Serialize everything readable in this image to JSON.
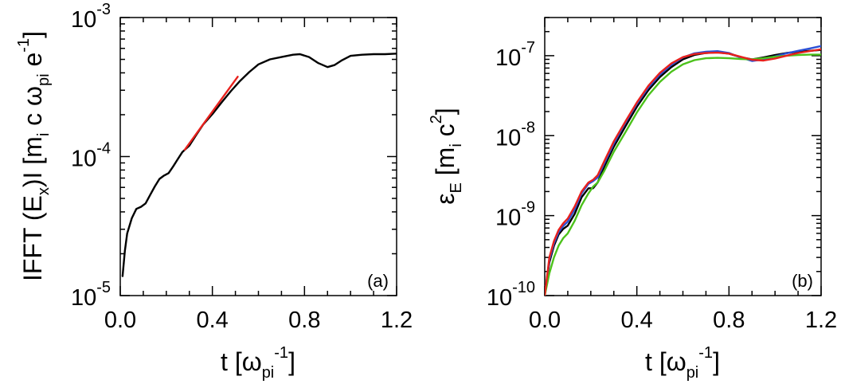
{
  "chart_data": [
    {
      "type": "line",
      "panel_label": "(a)",
      "ylabel": {
        "prefix": "IFFT (E",
        "sub1": "x",
        "mid1": ")I [m",
        "sub2": "i",
        "mid2": " c ω",
        "sub3": "pi",
        "mid3": " e",
        "sup": "-1",
        "suffix": "]"
      },
      "xlabel": {
        "prefix": "t [ω",
        "sub": "pi",
        "sup": "-1",
        "suffix": "]"
      },
      "yscale": "log",
      "xlim": [
        0.0,
        1.2
      ],
      "ylim": [
        1e-05,
        0.001
      ],
      "xticks": [
        "0.0",
        "0.4",
        "0.8",
        "1.2"
      ],
      "xtick_values": [
        0.0,
        0.4,
        0.8,
        1.2
      ],
      "ytick_decades": [
        -5,
        -4,
        -3
      ],
      "ytick_mantissa": "10",
      "series": [
        {
          "name": "IFFT(Ex)",
          "color": "#000000",
          "x": [
            0.01,
            0.02,
            0.03,
            0.05,
            0.07,
            0.09,
            0.11,
            0.13,
            0.15,
            0.17,
            0.19,
            0.21,
            0.23,
            0.25,
            0.27,
            0.3,
            0.33,
            0.36,
            0.4,
            0.44,
            0.48,
            0.52,
            0.56,
            0.6,
            0.65,
            0.7,
            0.75,
            0.78,
            0.82,
            0.86,
            0.9,
            0.93,
            0.96,
            1.0,
            1.05,
            1.1,
            1.15,
            1.2
          ],
          "values": [
            1.38e-05,
            2.1e-05,
            2.8e-05,
            3.6e-05,
            4.2e-05,
            4.35e-05,
            4.6e-05,
            5.3e-05,
            6.1e-05,
            6.9e-05,
            7.3e-05,
            7.6e-05,
            8.5e-05,
            9.6e-05,
            0.000108,
            0.00012,
            0.000143,
            0.00017,
            0.000202,
            0.000245,
            0.000295,
            0.00035,
            0.000405,
            0.00046,
            0.0005,
            0.00052,
            0.00054,
            0.000545,
            0.00052,
            0.00047,
            0.00044,
            0.000455,
            0.00049,
            0.00053,
            0.00054,
            0.000545,
            0.000545,
            0.00055
          ]
        },
        {
          "name": "fit",
          "color": "#e8211d",
          "x": [
            0.28,
            0.51
          ],
          "values": [
            0.000112,
            0.000375
          ]
        }
      ]
    },
    {
      "type": "line",
      "panel_label": "(b)",
      "ylabel": {
        "prefix": "ε",
        "sub1": "E",
        "mid1": " [m",
        "sub2": "i",
        "mid2": " c",
        "sup": "2",
        "suffix": "]"
      },
      "xlabel": {
        "prefix": "t [ω",
        "sub": "pi",
        "sup": "-1",
        "suffix": "]"
      },
      "yscale": "log",
      "xlim": [
        0.0,
        1.2
      ],
      "ylim": [
        1e-10,
        3e-07
      ],
      "xticks": [
        "0.0",
        "0.4",
        "0.8",
        "1.2"
      ],
      "xtick_values": [
        0.0,
        0.4,
        0.8,
        1.2
      ],
      "ytick_decades": [
        -10,
        -9,
        -8,
        -7
      ],
      "ytick_mantissa": "10",
      "series": [
        {
          "name": "black",
          "color": "#000000",
          "x": [
            0.0,
            0.02,
            0.04,
            0.06,
            0.08,
            0.1,
            0.13,
            0.16,
            0.19,
            0.21,
            0.23,
            0.26,
            0.3,
            0.35,
            0.4,
            0.45,
            0.5,
            0.55,
            0.6,
            0.65,
            0.7,
            0.75,
            0.8,
            0.85,
            0.9,
            0.95,
            1.0,
            1.05,
            1.1,
            1.15,
            1.2
          ],
          "values": [
            1e-10,
            2.6e-10,
            4.2e-10,
            5.8e-10,
            6.8e-10,
            7.5e-10,
            1.05e-09,
            1.7e-09,
            2.2e-09,
            2.2e-09,
            2.6e-09,
            4.2e-09,
            7.3e-09,
            1.3e-08,
            2.3e-08,
            3.7e-08,
            5.4e-08,
            7.2e-08,
            9e-08,
            1.02e-07,
            1.08e-07,
            1.1e-07,
            1.06e-07,
            9.6e-08,
            9e-08,
            9.5e-08,
            1.02e-07,
            1.08e-07,
            1.12e-07,
            1.15e-07,
            1.18e-07
          ]
        },
        {
          "name": "blue",
          "color": "#2b4fd6",
          "x": [
            0.0,
            0.02,
            0.04,
            0.06,
            0.08,
            0.1,
            0.13,
            0.16,
            0.19,
            0.21,
            0.23,
            0.26,
            0.3,
            0.35,
            0.4,
            0.45,
            0.5,
            0.55,
            0.6,
            0.65,
            0.7,
            0.75,
            0.8,
            0.85,
            0.9,
            0.95,
            1.0,
            1.05,
            1.1,
            1.15,
            1.2
          ],
          "values": [
            1e-10,
            2.8e-10,
            4.5e-10,
            6.2e-10,
            7.4e-10,
            8.4e-10,
            1.2e-09,
            1.9e-09,
            2.5e-09,
            2.7e-09,
            3e-09,
            4.6e-09,
            8e-09,
            1.45e-08,
            2.5e-08,
            4e-08,
            5.8e-08,
            7.7e-08,
            9.5e-08,
            1.07e-07,
            1.12e-07,
            1.14e-07,
            1.08e-07,
            9.5e-08,
            8.6e-08,
            9e-08,
            9.8e-08,
            1.07e-07,
            1.15e-07,
            1.23e-07,
            1.32e-07
          ]
        },
        {
          "name": "green",
          "color": "#4cc21b",
          "x": [
            0.0,
            0.02,
            0.04,
            0.06,
            0.08,
            0.1,
            0.13,
            0.16,
            0.19,
            0.21,
            0.23,
            0.26,
            0.3,
            0.35,
            0.4,
            0.45,
            0.5,
            0.55,
            0.6,
            0.65,
            0.7,
            0.75,
            0.8,
            0.85,
            0.9,
            0.95,
            1.0,
            1.05,
            1.1,
            1.15,
            1.2
          ],
          "values": [
            1e-10,
            1.9e-10,
            3e-10,
            4.2e-10,
            5.2e-10,
            6e-10,
            8.6e-10,
            1.35e-09,
            1.9e-09,
            2.3e-09,
            2.6e-09,
            3.7e-09,
            6.3e-09,
            1.1e-08,
            1.95e-08,
            3.2e-08,
            4.7e-08,
            6.3e-08,
            7.8e-08,
            8.8e-08,
            9.3e-08,
            9.4e-08,
            9.3e-08,
            9.1e-08,
            9e-08,
            9.3e-08,
            9.7e-08,
            1e-07,
            1.02e-07,
            1.03e-07,
            1.03e-07
          ]
        },
        {
          "name": "red",
          "color": "#e8211d",
          "x": [
            0.0,
            0.02,
            0.04,
            0.06,
            0.08,
            0.1,
            0.13,
            0.16,
            0.19,
            0.21,
            0.23,
            0.26,
            0.3,
            0.35,
            0.4,
            0.45,
            0.5,
            0.55,
            0.6,
            0.65,
            0.7,
            0.75,
            0.8,
            0.85,
            0.9,
            0.95,
            1.0,
            1.05,
            1.1,
            1.15,
            1.2
          ],
          "values": [
            1e-10,
            3e-10,
            4.8e-10,
            6.6e-10,
            8e-10,
            9.2e-10,
            1.3e-09,
            2e-09,
            2.6e-09,
            2.8e-09,
            3.2e-09,
            4.9e-09,
            8.5e-09,
            1.5e-08,
            2.6e-08,
            4.2e-08,
            6.1e-08,
            8e-08,
            9.6e-08,
            1.05e-07,
            1.08e-07,
            1.09e-07,
            1.06e-07,
            9.7e-08,
            8.9e-08,
            8.7e-08,
            9.2e-08,
            1e-07,
            1.08e-07,
            1.14e-07,
            1.2e-07
          ]
        }
      ]
    }
  ]
}
